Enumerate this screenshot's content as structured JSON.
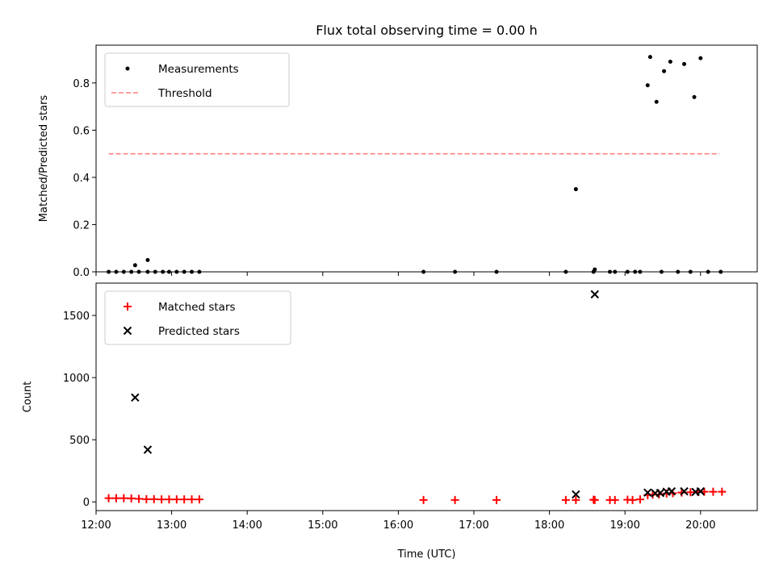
{
  "chart_data": [
    {
      "type": "scatter",
      "title": "Flux total observing time = 0.00 h",
      "ylabel": "Matched/Predicted stars",
      "xlim": [
        "12:00",
        "20:45"
      ],
      "ylim": [
        0,
        0.96
      ],
      "y_ticks": [
        "0.0",
        "0.2",
        "0.4",
        "0.6",
        "0.8"
      ],
      "x_tick_labels_shown": false,
      "legend": {
        "placement": "upper-left",
        "entries": [
          "Measurements",
          "Threshold"
        ]
      },
      "threshold": {
        "name": "Threshold",
        "value": 0.5,
        "x_start": "12:10",
        "x_end": "20:15",
        "color": "#ff7f7f",
        "style": "dashed"
      },
      "series": [
        {
          "name": "Measurements",
          "marker": "dot",
          "color": "#000000",
          "points": [
            [
              "12:10",
              0.0
            ],
            [
              "12:16",
              0.0
            ],
            [
              "12:22",
              0.0
            ],
            [
              "12:28",
              0.0
            ],
            [
              "12:34",
              0.0
            ],
            [
              "12:31",
              0.028
            ],
            [
              "12:41",
              0.0
            ],
            [
              "12:41",
              0.05
            ],
            [
              "12:47",
              0.0
            ],
            [
              "12:53",
              0.0
            ],
            [
              "12:58",
              0.0
            ],
            [
              "13:04",
              0.0
            ],
            [
              "13:10",
              0.0
            ],
            [
              "13:16",
              0.0
            ],
            [
              "13:22",
              0.0
            ],
            [
              "16:20",
              0.0
            ],
            [
              "16:45",
              0.0
            ],
            [
              "17:18",
              0.0
            ],
            [
              "18:13",
              0.0
            ],
            [
              "18:21",
              0.35
            ],
            [
              "18:35",
              0.0
            ],
            [
              "18:36",
              0.01
            ],
            [
              "18:48",
              0.0
            ],
            [
              "18:52",
              0.0
            ],
            [
              "19:02",
              0.0
            ],
            [
              "19:08",
              0.0
            ],
            [
              "19:12",
              0.0
            ],
            [
              "19:18",
              0.79
            ],
            [
              "19:20",
              0.91
            ],
            [
              "19:25",
              0.72
            ],
            [
              "19:29",
              0.0
            ],
            [
              "19:31",
              0.85
            ],
            [
              "19:36",
              0.89
            ],
            [
              "19:42",
              0.0
            ],
            [
              "19:47",
              0.88
            ],
            [
              "19:52",
              0.0
            ],
            [
              "19:55",
              0.74
            ],
            [
              "20:00",
              0.905
            ],
            [
              "20:06",
              0.0
            ],
            [
              "20:16",
              0.0
            ]
          ]
        }
      ]
    },
    {
      "type": "scatter",
      "title": "",
      "xlabel": "Time (UTC)",
      "ylabel": "Count",
      "xlim": [
        "12:00",
        "20:45"
      ],
      "ylim": [
        -70,
        1760
      ],
      "x_ticks": [
        "12:00",
        "13:00",
        "14:00",
        "15:00",
        "16:00",
        "17:00",
        "18:00",
        "19:00",
        "20:00"
      ],
      "y_ticks": [
        "0",
        "500",
        "1000",
        "1500"
      ],
      "legend": {
        "placement": "upper-left",
        "entries": [
          "Matched stars",
          "Predicted stars"
        ]
      },
      "series": [
        {
          "name": "Matched stars",
          "marker": "plus",
          "color": "#ff0000",
          "points": [
            [
              "12:10",
              30
            ],
            [
              "12:16",
              30
            ],
            [
              "12:22",
              30
            ],
            [
              "12:28",
              28
            ],
            [
              "12:34",
              25
            ],
            [
              "12:40",
              22
            ],
            [
              "12:46",
              22
            ],
            [
              "12:52",
              20
            ],
            [
              "12:58",
              20
            ],
            [
              "13:04",
              20
            ],
            [
              "13:10",
              20
            ],
            [
              "13:16",
              20
            ],
            [
              "13:22",
              20
            ],
            [
              "16:20",
              15
            ],
            [
              "16:45",
              15
            ],
            [
              "17:18",
              15
            ],
            [
              "18:13",
              15
            ],
            [
              "18:21",
              15
            ],
            [
              "18:35",
              18
            ],
            [
              "18:36",
              15
            ],
            [
              "18:48",
              15
            ],
            [
              "18:52",
              15
            ],
            [
              "19:02",
              18
            ],
            [
              "19:06",
              15
            ],
            [
              "19:12",
              20
            ],
            [
              "19:18",
              55
            ],
            [
              "19:22",
              58
            ],
            [
              "19:27",
              60
            ],
            [
              "19:33",
              68
            ],
            [
              "19:38",
              70
            ],
            [
              "19:45",
              75
            ],
            [
              "19:52",
              78
            ],
            [
              "19:58",
              80
            ],
            [
              "20:03",
              82
            ],
            [
              "20:10",
              82
            ],
            [
              "20:17",
              82
            ]
          ]
        },
        {
          "name": "Predicted stars",
          "marker": "x",
          "color": "#000000",
          "points": [
            [
              "12:31",
              840
            ],
            [
              "12:41",
              420
            ],
            [
              "18:21",
              60
            ],
            [
              "18:36",
              1670
            ],
            [
              "19:18",
              75
            ],
            [
              "19:24",
              70
            ],
            [
              "19:28",
              72
            ],
            [
              "19:33",
              82
            ],
            [
              "19:37",
              85
            ],
            [
              "19:47",
              85
            ],
            [
              "19:56",
              80
            ],
            [
              "20:00",
              85
            ]
          ]
        }
      ]
    }
  ]
}
